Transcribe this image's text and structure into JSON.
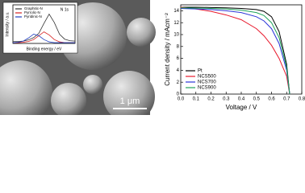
{
  "image": {
    "scale_bar": "1 μm"
  },
  "chart_data": [
    {
      "type": "line",
      "xlabel": "Voltage / V",
      "ylabel": "Current density / mAcm⁻²",
      "x": [
        0,
        0.1,
        0.2,
        0.3,
        0.4,
        0.5,
        0.55,
        0.6,
        0.65,
        0.7,
        0.72
      ],
      "xlim": [
        0,
        0.8
      ],
      "xticks": [
        {
          "value": 0,
          "label": "0.0"
        },
        0.1,
        0.2,
        0.3,
        0.4,
        0.5,
        0.6,
        0.7,
        0.8
      ],
      "ylim": [
        0,
        15
      ],
      "yticks": [
        0,
        2,
        4,
        6,
        8,
        10,
        12,
        14
      ],
      "legend": "lower-left",
      "series": [
        {
          "name": "Pt",
          "color": "#000000",
          "values": [
            14.6,
            14.6,
            14.55,
            14.5,
            14.4,
            14.2,
            13.9,
            13.0,
            10.5,
            5,
            0
          ]
        },
        {
          "name": "NCS500",
          "color": "#e8192c",
          "values": [
            14.6,
            14.3,
            13.9,
            13.3,
            12.5,
            11.0,
            9.8,
            8.2,
            6,
            3,
            0
          ]
        },
        {
          "name": "NCS700",
          "color": "#2a34d8",
          "values": [
            14.4,
            14.3,
            14.2,
            14.0,
            13.7,
            13.0,
            12.3,
            11,
            8.5,
            4,
            0
          ]
        },
        {
          "name": "NCS900",
          "color": "#1fa35a",
          "values": [
            14.5,
            14.45,
            14.4,
            14.3,
            14.1,
            13.7,
            13.2,
            12,
            9.5,
            4.5,
            0
          ]
        }
      ]
    },
    {
      "type": "line",
      "xlabel": "Binding energy / eV",
      "ylabel": "Intensity / a.u.",
      "annotation": "N 1s",
      "x": [
        394,
        395,
        396,
        397,
        398,
        399,
        400,
        401,
        402,
        403,
        404,
        405,
        406
      ],
      "xlim": [
        394,
        406
      ],
      "ylim": [
        0,
        10
      ],
      "legend": "upper-left",
      "series": [
        {
          "name": "Graphitic-N",
          "color": "#333333",
          "values": [
            0.5,
            0.5,
            0.6,
            0.9,
            1.5,
            2.6,
            5.2,
            7.6,
            5.4,
            2.4,
            1.1,
            0.7,
            0.6
          ]
        },
        {
          "name": "Pyrrolic-N",
          "color": "#d62020",
          "values": [
            0.2,
            0.2,
            0.3,
            0.5,
            1.0,
            2.0,
            3.0,
            2.2,
            1.0,
            0.4,
            0.2,
            0.2,
            0.2
          ]
        },
        {
          "name": "Pyridinic-N",
          "color": "#2040c0",
          "values": [
            0.2,
            0.3,
            0.6,
            1.4,
            2.4,
            2.0,
            1.0,
            0.4,
            0.2,
            0.2,
            0.2,
            0.2,
            0.2
          ]
        }
      ]
    }
  ]
}
